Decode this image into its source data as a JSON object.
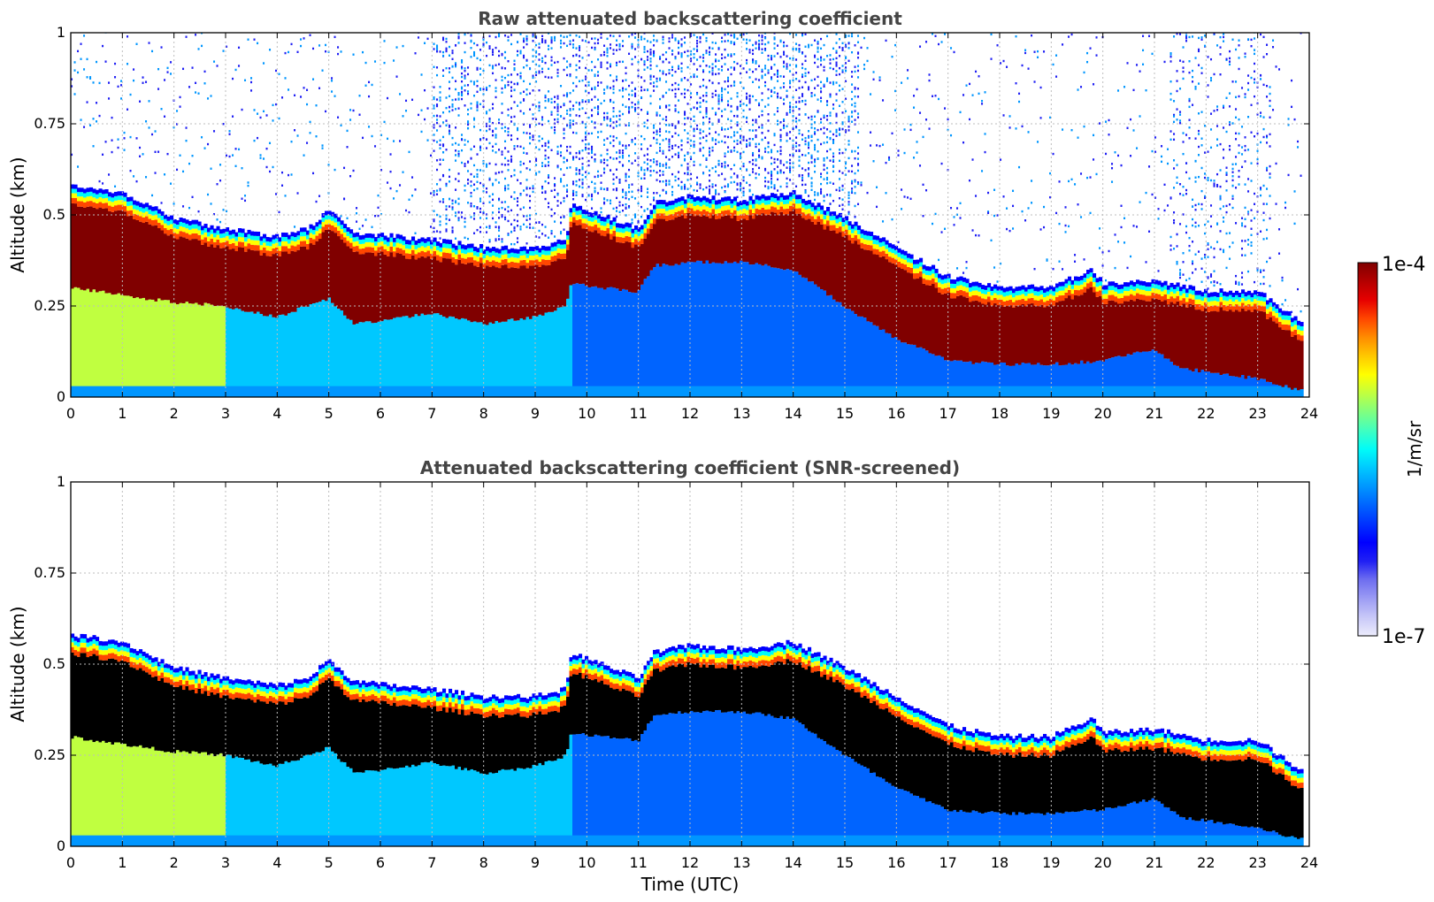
{
  "chart_data": [
    {
      "type": "heatmap",
      "title": "Raw attenuated backscattering coefficient",
      "xlabel": "",
      "ylabel": "Altitude (km)",
      "xlim": [
        0,
        24
      ],
      "ylim": [
        0,
        1
      ],
      "x_ticks": [
        "0",
        "1",
        "2",
        "3",
        "4",
        "5",
        "6",
        "7",
        "8",
        "9",
        "10",
        "11",
        "12",
        "13",
        "14",
        "15",
        "16",
        "17",
        "18",
        "19",
        "20",
        "21",
        "22",
        "23",
        "24"
      ],
      "y_ticks": [
        "0",
        "0.25",
        "0.5",
        "0.75",
        "1"
      ],
      "grid": true,
      "layer_top_km": [
        [
          0,
          0.57
        ],
        [
          1,
          0.55
        ],
        [
          2,
          0.48
        ],
        [
          3,
          0.45
        ],
        [
          4,
          0.43
        ],
        [
          4.6,
          0.45
        ],
        [
          5,
          0.5
        ],
        [
          5.5,
          0.44
        ],
        [
          7,
          0.42
        ],
        [
          8,
          0.4
        ],
        [
          9,
          0.4
        ],
        [
          9.6,
          0.42
        ],
        [
          9.7,
          0.52
        ],
        [
          11,
          0.45
        ],
        [
          11.3,
          0.52
        ],
        [
          12,
          0.54
        ],
        [
          13,
          0.53
        ],
        [
          14,
          0.55
        ],
        [
          15,
          0.48
        ],
        [
          16,
          0.4
        ],
        [
          17,
          0.32
        ],
        [
          18,
          0.29
        ],
        [
          19,
          0.29
        ],
        [
          19.8,
          0.34
        ],
        [
          20,
          0.3
        ],
        [
          21,
          0.31
        ],
        [
          22,
          0.28
        ],
        [
          23,
          0.28
        ],
        [
          23.8,
          0.2
        ]
      ],
      "layer_base_km": [
        [
          0,
          0.3
        ],
        [
          1,
          0.28
        ],
        [
          2,
          0.26
        ],
        [
          3,
          0.25
        ],
        [
          4,
          0.22
        ],
        [
          5,
          0.27
        ],
        [
          5.5,
          0.2
        ],
        [
          7,
          0.23
        ],
        [
          8,
          0.2
        ],
        [
          9,
          0.22
        ],
        [
          9.6,
          0.25
        ],
        [
          9.7,
          0.31
        ],
        [
          11,
          0.29
        ],
        [
          11.3,
          0.36
        ],
        [
          12,
          0.37
        ],
        [
          13,
          0.37
        ],
        [
          14,
          0.35
        ],
        [
          15,
          0.25
        ],
        [
          16,
          0.16
        ],
        [
          17,
          0.1
        ],
        [
          18,
          0.09
        ],
        [
          19,
          0.09
        ],
        [
          20,
          0.1
        ],
        [
          21,
          0.13
        ],
        [
          21.5,
          0.08
        ],
        [
          22,
          0.07
        ],
        [
          23,
          0.05
        ],
        [
          23.8,
          0.02
        ]
      ],
      "noise_above_layer": true
    },
    {
      "type": "heatmap",
      "title": "Attenuated backscattering coefficient (SNR-screened)",
      "xlabel": "Time (UTC)",
      "ylabel": "Altitude (km)",
      "xlim": [
        0,
        24
      ],
      "ylim": [
        0,
        1
      ],
      "x_ticks": [
        "0",
        "1",
        "2",
        "3",
        "4",
        "5",
        "6",
        "7",
        "8",
        "9",
        "10",
        "11",
        "12",
        "13",
        "14",
        "15",
        "16",
        "17",
        "18",
        "19",
        "20",
        "21",
        "22",
        "23",
        "24"
      ],
      "y_ticks": [
        "0",
        "0.25",
        "0.5",
        "0.75",
        "1"
      ],
      "grid": true,
      "saturated_color": "#000000",
      "noise_above_layer": false
    }
  ],
  "colorbar": {
    "label": "1/m/sr",
    "max_label": "1e-4",
    "min_label": "1e-7",
    "scale": "log",
    "range": [
      1e-07,
      0.0001
    ],
    "colors": [
      "#ececfc",
      "#c8c8f8",
      "#9c9cf4",
      "#6e6ef0",
      "#2020f4",
      "#0000ff",
      "#0032ff",
      "#0064ff",
      "#0096ff",
      "#00c8ff",
      "#00fcf8",
      "#40ffc0",
      "#80ff80",
      "#c0ff40",
      "#ffff00",
      "#ffc800",
      "#ff8c00",
      "#ff4600",
      "#e60000",
      "#b40000",
      "#800000"
    ]
  }
}
